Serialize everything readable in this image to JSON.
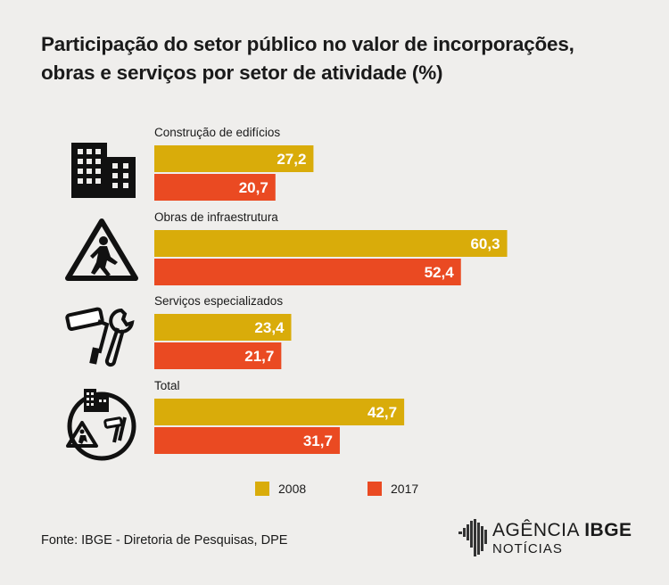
{
  "title_lines": [
    "Participação do setor público no valor de incorporações,",
    "obras e serviços por setor de atividade (%)"
  ],
  "chart_data": {
    "type": "bar",
    "orientation": "horizontal",
    "categories": [
      "Construção de edifícios",
      "Obras de infraestrutura",
      "Serviços especializados",
      "Total"
    ],
    "series": [
      {
        "name": "2008",
        "values": [
          27.2,
          60.3,
          23.4,
          42.7
        ],
        "display": [
          "27,2",
          "60,3",
          "23,4",
          "42,7"
        ],
        "color": "#d9ac0a"
      },
      {
        "name": "2017",
        "values": [
          20.7,
          52.4,
          21.7,
          31.7
        ],
        "display": [
          "20,7",
          "52,4",
          "21,7",
          "31,7"
        ],
        "color": "#ea4a22"
      }
    ],
    "icons": [
      "building-icon",
      "construction-worker-sign-icon",
      "paint-roller-wrench-icon",
      "combined-sectors-icon"
    ],
    "legend_placement": "bottom",
    "grid": false
  },
  "legend": [
    {
      "label": "2008",
      "color": "#d9ac0a"
    },
    {
      "label": "2017",
      "color": "#ea4a22"
    }
  ],
  "source": "Fonte: IBGE - Diretoria de Pesquisas, DPE",
  "logo": {
    "word1": "AGÊNCIA",
    "word2": "IBGE",
    "sub": "NOTÍCIAS"
  }
}
